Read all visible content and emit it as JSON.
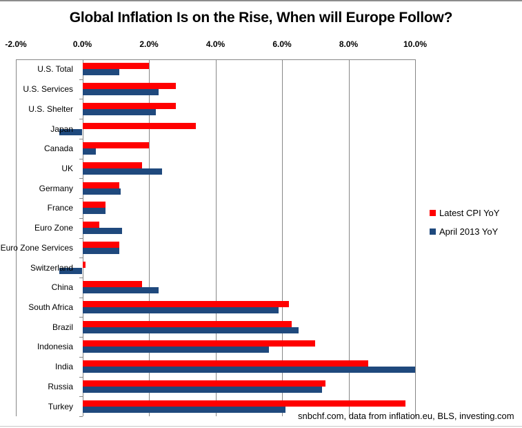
{
  "chart_data": {
    "type": "bar",
    "orientation": "horizontal",
    "title": "Global Inflation Is on the Rise, When will Europe Follow?",
    "xlabel": "",
    "ylabel": "",
    "xlim": [
      -2.0,
      10.0
    ],
    "xticks": [
      -2.0,
      0.0,
      2.0,
      4.0,
      6.0,
      8.0,
      10.0
    ],
    "xtick_labels": [
      "-2.0%",
      "0.0%",
      "2.0%",
      "4.0%",
      "6.0%",
      "8.0%",
      "10.0%"
    ],
    "grid": true,
    "legend_position": "right",
    "categories": [
      "U.S. Total",
      "U.S. Services",
      "U.S. Shelter",
      "Japan",
      "Canada",
      "UK",
      "Germany",
      "France",
      "Euro Zone",
      "Euro Zone Services",
      "Switzerland",
      "China",
      "South Africa",
      "Brazil",
      "Indonesia",
      "India",
      "Russia",
      "Turkey"
    ],
    "series": [
      {
        "name": "Latest CPI YoY",
        "color": "#FF0000",
        "values": [
          2.0,
          2.8,
          2.8,
          3.4,
          2.0,
          1.8,
          1.1,
          0.7,
          0.5,
          1.1,
          0.1,
          1.8,
          6.2,
          6.3,
          7.0,
          8.6,
          7.3,
          9.7
        ]
      },
      {
        "name": "April 2013 YoY",
        "color": "#1F497D",
        "values": [
          1.1,
          2.3,
          2.2,
          -0.7,
          0.4,
          2.4,
          1.15,
          0.7,
          1.2,
          1.1,
          -0.7,
          2.3,
          5.9,
          6.5,
          5.6,
          10.0,
          7.2,
          6.1
        ]
      }
    ],
    "annotation": "snbchf.com, data from inflation.eu, BLS, investing.com"
  }
}
